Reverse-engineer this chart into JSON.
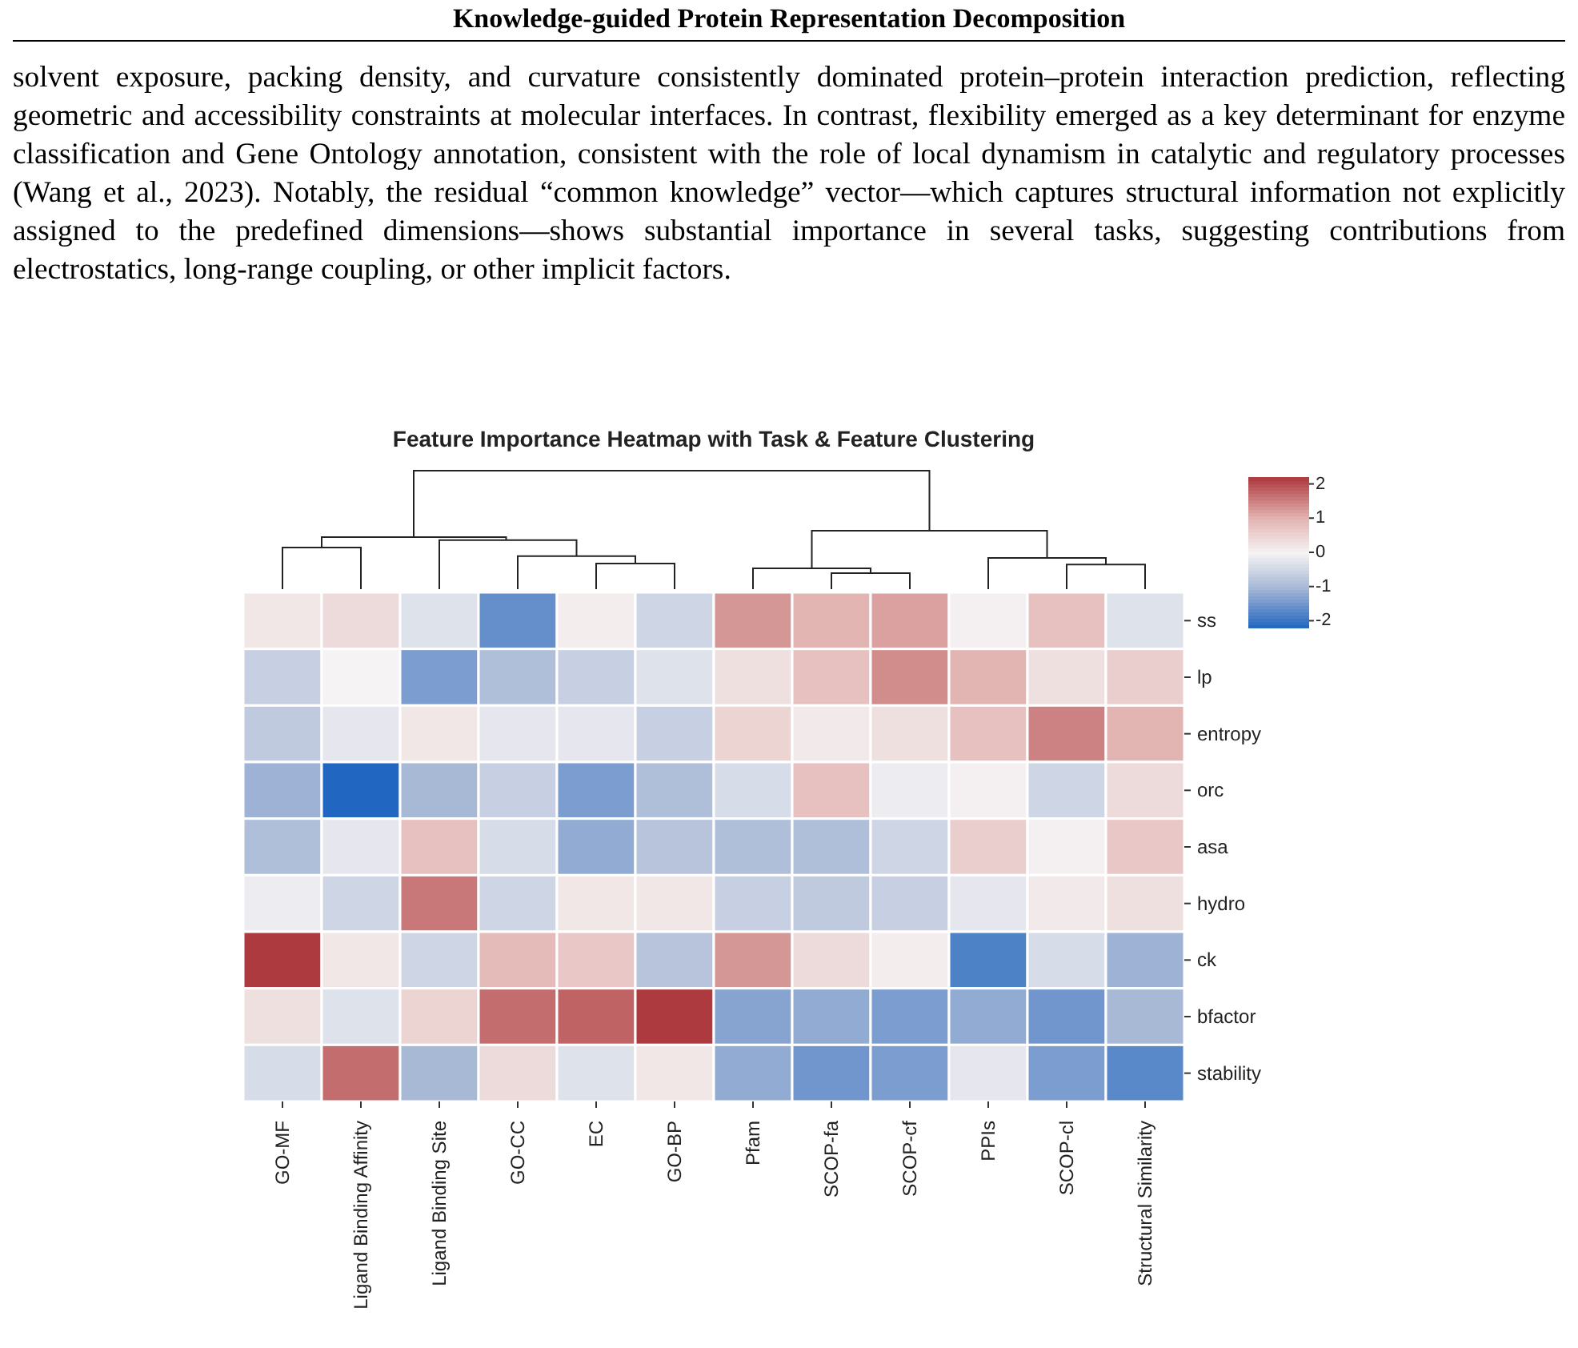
{
  "chart_data": {
    "type": "heatmap",
    "title": "Feature Importance Heatmap with Task & Feature Clustering",
    "annotations": [
      "Knowledge-guided Protein Representation Decomposition",
      "solvent exposure, packing density, and curvature consistently dominated protein–protein interaction prediction, reflecting geometric and accessibility constraints at molecular interfaces. In contrast, flexibility emerged as a key determinant for enzyme classification and Gene Ontology annotation, consistent with the role of local dynamism in catalytic and regulatory processes (Wang et al., 2023). Notably, the residual “common knowledge” vector—which captures structural information not explicitly assigned to the predefined dimensions—shows substantial importance in several tasks, suggesting contributions from electrostatics, long-range coupling, or other implicit factors."
    ],
    "categories": [
      "GO-MF",
      "Ligand Binding Affinity",
      "Ligand Binding Site",
      "GO-CC",
      "EC",
      "GO-BP",
      "Pfam",
      "SCOP-fa",
      "SCOP-cf",
      "PPIs",
      "SCOP-cl",
      "Structural Similarity"
    ],
    "y_categories": [
      "ss",
      "lp",
      "entropy",
      "orc",
      "asa",
      "hydro",
      "ck",
      "bfactor",
      "stability"
    ],
    "cells": [
      [
        0.2,
        0.4,
        -0.3,
        -1.6,
        0.1,
        -0.5,
        1.3,
        1.0,
        1.2,
        0.05,
        0.8,
        -0.3
      ],
      [
        -0.6,
        0.0,
        -1.4,
        -0.9,
        -0.6,
        -0.3,
        0.3,
        0.8,
        1.4,
        1.0,
        0.3,
        0.6
      ],
      [
        -0.7,
        -0.2,
        0.2,
        -0.2,
        -0.2,
        -0.6,
        0.5,
        0.15,
        0.3,
        0.8,
        1.5,
        1.0
      ],
      [
        -1.1,
        -2.2,
        -1.0,
        -0.6,
        -1.4,
        -0.9,
        -0.4,
        0.8,
        -0.1,
        0.05,
        -0.5,
        0.4
      ],
      [
        -0.9,
        -0.2,
        0.8,
        -0.4,
        -1.2,
        -0.8,
        -0.9,
        -0.9,
        -0.5,
        0.6,
        0.05,
        0.7
      ],
      [
        -0.1,
        -0.5,
        1.6,
        -0.5,
        0.2,
        0.2,
        -0.6,
        -0.7,
        -0.6,
        -0.2,
        0.15,
        0.3
      ],
      [
        2.2,
        0.2,
        -0.5,
        0.9,
        0.7,
        -0.8,
        1.3,
        0.4,
        0.1,
        -1.8,
        -0.4,
        -1.1
      ],
      [
        0.3,
        -0.3,
        0.5,
        1.7,
        1.8,
        2.2,
        -1.3,
        -1.2,
        -1.4,
        -1.2,
        -1.5,
        -1.0
      ],
      [
        -0.4,
        1.7,
        -1.0,
        0.4,
        -0.3,
        0.2,
        -1.2,
        -1.5,
        -1.4,
        -0.2,
        -1.4,
        -1.7
      ]
    ],
    "clim": [
      -2.2,
      2.2
    ],
    "cticks": [
      -2,
      -1,
      0,
      1,
      2
    ]
  }
}
